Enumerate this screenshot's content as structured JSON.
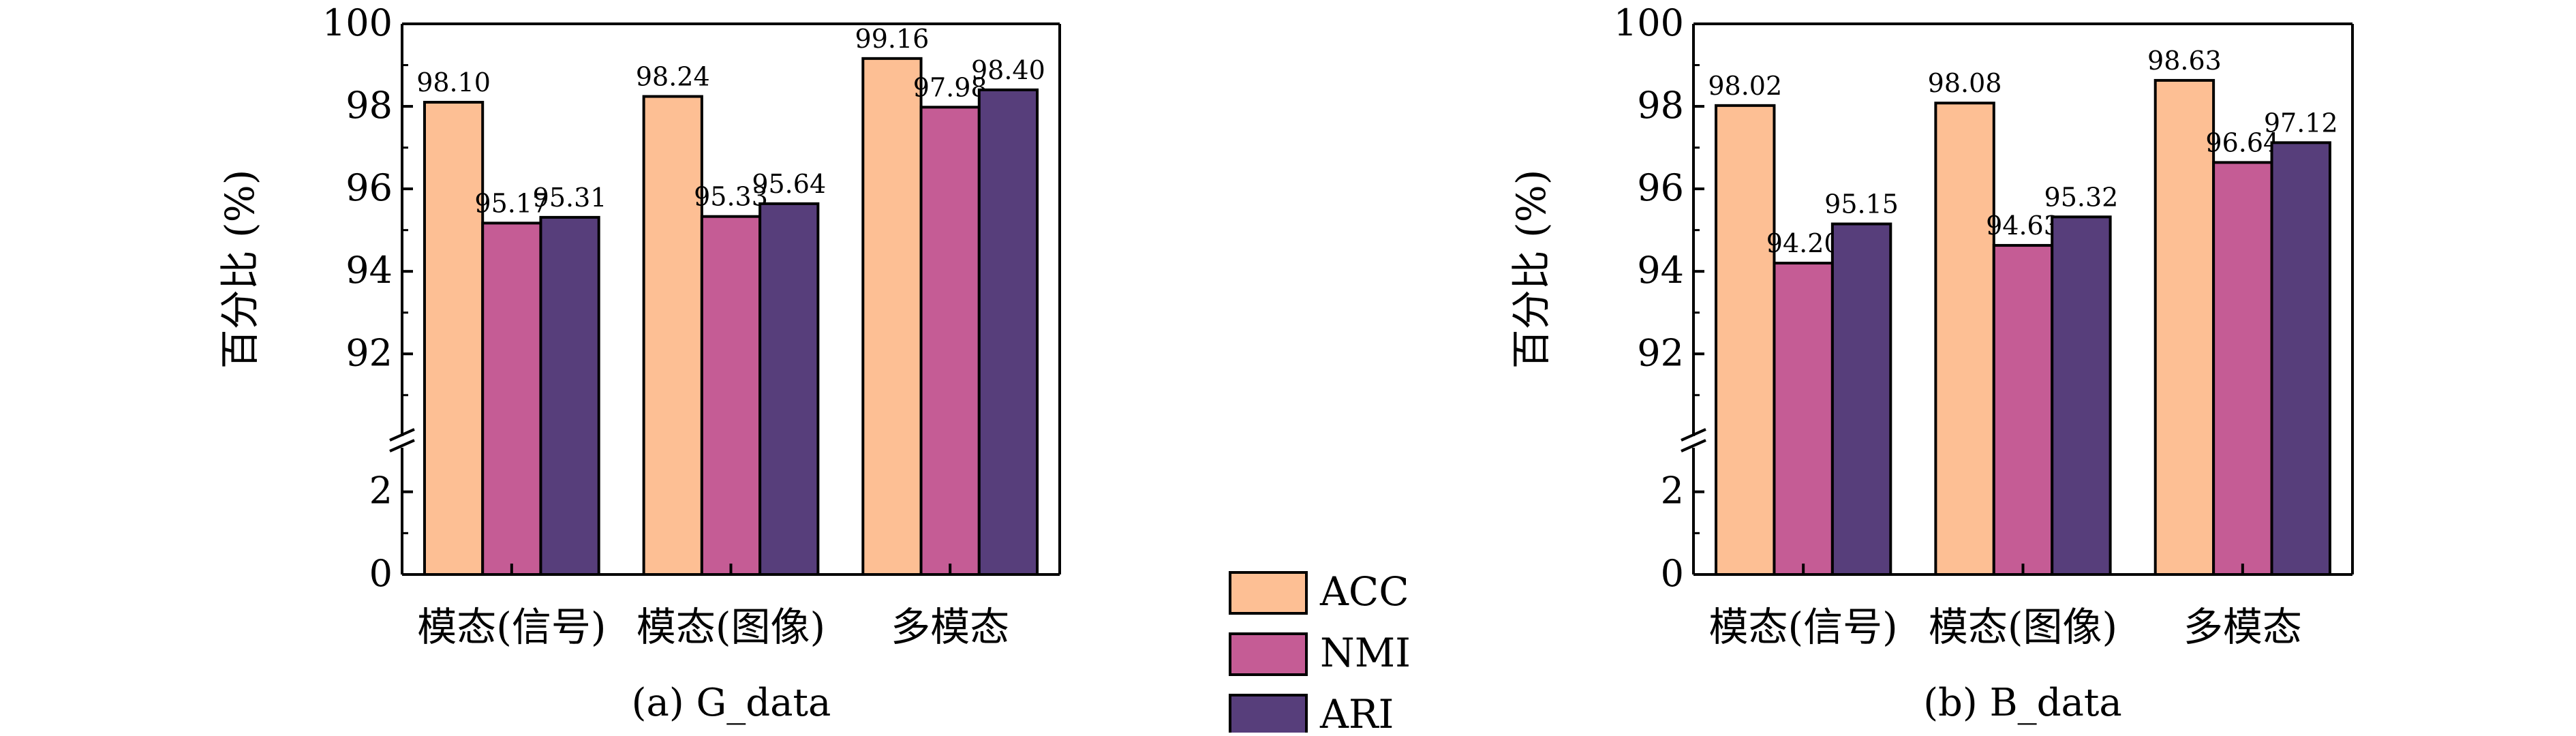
{
  "legend": {
    "entries": [
      {
        "label": "ACC",
        "color": "#FDBF94"
      },
      {
        "label": "NMI",
        "color": "#C55C95"
      },
      {
        "label": "ARI",
        "color": "#573E7B"
      }
    ]
  },
  "chart_data": [
    {
      "type": "bar",
      "title": "",
      "caption": "(a) G_data",
      "ylabel": "百分比 (%)",
      "xlabel": "",
      "categories": [
        "模态(信号)",
        "模态(图像)",
        "多模态"
      ],
      "series": [
        {
          "name": "ACC",
          "values": [
            98.1,
            98.24,
            99.16
          ],
          "labels": [
            "98.10",
            "98.24",
            "99.16"
          ]
        },
        {
          "name": "NMI",
          "values": [
            95.17,
            95.33,
            97.98
          ],
          "labels": [
            "95.17",
            "95.33",
            "97.98"
          ]
        },
        {
          "name": "ARI",
          "values": [
            95.31,
            95.64,
            98.4
          ],
          "labels": [
            "95.31",
            "95.64",
            "98.40"
          ]
        }
      ],
      "axis_break": {
        "lower_range": [
          0,
          3
        ],
        "upper_range": [
          90.6,
          100
        ]
      },
      "yticks_upper": [
        "92",
        "94",
        "96",
        "98",
        "100"
      ],
      "yticks_lower": [
        "0",
        "2"
      ],
      "grid": false
    },
    {
      "type": "bar",
      "title": "",
      "caption": "(b) B_data",
      "ylabel": "百分比 (%)",
      "xlabel": "",
      "categories": [
        "模态(信号)",
        "模态(图像)",
        "多模态"
      ],
      "series": [
        {
          "name": "ACC",
          "values": [
            98.02,
            98.08,
            98.63
          ],
          "labels": [
            "98.02",
            "98.08",
            "98.63"
          ]
        },
        {
          "name": "NMI",
          "values": [
            94.2,
            94.63,
            96.64
          ],
          "labels": [
            "94.20",
            "94.63",
            "96.64"
          ]
        },
        {
          "name": "ARI",
          "values": [
            95.15,
            95.32,
            97.12
          ],
          "labels": [
            "95.15",
            "95.32",
            "97.12"
          ]
        }
      ],
      "axis_break": {
        "lower_range": [
          0,
          3
        ],
        "upper_range": [
          90.6,
          100
        ]
      },
      "yticks_upper": [
        "92",
        "94",
        "96",
        "98",
        "100"
      ],
      "yticks_lower": [
        "0",
        "2"
      ],
      "grid": false
    }
  ]
}
